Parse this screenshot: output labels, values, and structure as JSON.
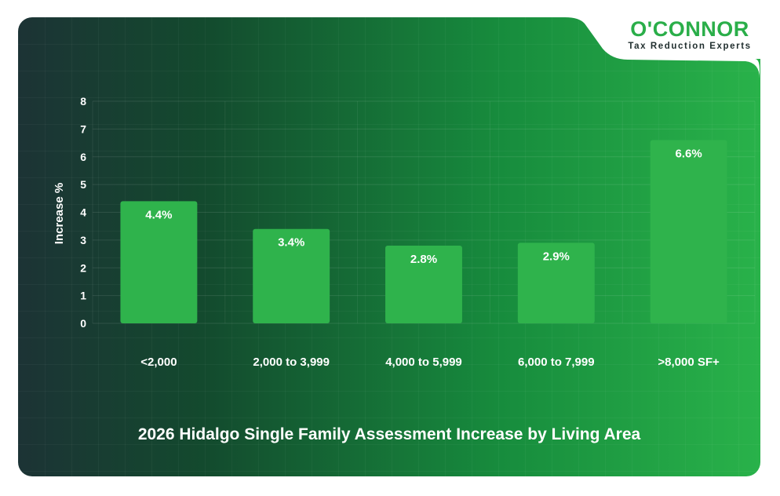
{
  "brand": {
    "name": "O'CONNOR",
    "tagline": "Tax Reduction Experts",
    "accent_color": "#2aae49",
    "bar_color": "#2fb34c"
  },
  "chart_data": {
    "type": "bar",
    "title": "2026 Hidalgo Single Family Assessment Increase by Living Area",
    "xlabel": "",
    "ylabel": "Increase %",
    "ylim": [
      0,
      8
    ],
    "yticks": [
      0,
      1,
      2,
      3,
      4,
      5,
      6,
      7,
      8
    ],
    "categories": [
      "<2,000",
      "2,000 to 3,999",
      "4,000 to 5,999",
      "6,000 to 7,999",
      ">8,000 SF+"
    ],
    "values": [
      4.4,
      3.4,
      2.8,
      2.9,
      6.6
    ],
    "data_labels": [
      "4.4%",
      "3.4%",
      "2.8%",
      "2.9%",
      "6.6%"
    ],
    "grid": true,
    "legend": "none"
  }
}
